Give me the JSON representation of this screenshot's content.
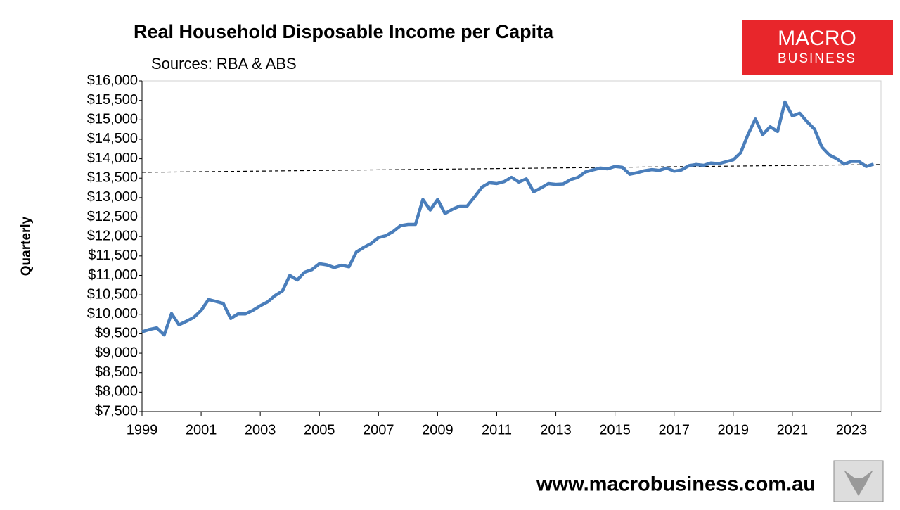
{
  "chart_data": {
    "type": "line",
    "title": "Real Household Disposable Income per Capita",
    "subtitle": "Sources: RBA & ABS",
    "y_label": "Quarterly",
    "x": [
      1999,
      1999.25,
      1999.5,
      1999.75,
      2000,
      2000.25,
      2000.5,
      2000.75,
      2001,
      2001.25,
      2001.5,
      2001.75,
      2002,
      2002.25,
      2002.5,
      2002.75,
      2003,
      2003.25,
      2003.5,
      2003.75,
      2004,
      2004.25,
      2004.5,
      2004.75,
      2005,
      2005.25,
      2005.5,
      2005.75,
      2006,
      2006.25,
      2006.5,
      2006.75,
      2007,
      2007.25,
      2007.5,
      2007.75,
      2008,
      2008.25,
      2008.5,
      2008.75,
      2009,
      2009.25,
      2009.5,
      2009.75,
      2010,
      2010.25,
      2010.5,
      2010.75,
      2011,
      2011.25,
      2011.5,
      2011.75,
      2012,
      2012.25,
      2012.5,
      2012.75,
      2013,
      2013.25,
      2013.5,
      2013.75,
      2014,
      2014.25,
      2014.5,
      2014.75,
      2015,
      2015.25,
      2015.5,
      2015.75,
      2016,
      2016.25,
      2016.5,
      2016.75,
      2017,
      2017.25,
      2017.5,
      2017.75,
      2018,
      2018.25,
      2018.5,
      2018.75,
      2019,
      2019.25,
      2019.5,
      2019.75,
      2020,
      2020.25,
      2020.5,
      2020.75,
      2021,
      2021.25,
      2021.5,
      2021.75,
      2022,
      2022.25,
      2022.5,
      2022.75,
      2023,
      2023.25,
      2023.5,
      2023.75
    ],
    "series": [
      {
        "color": "#4a7ebb",
        "values": [
          9550,
          9610,
          9650,
          9470,
          10020,
          9730,
          9820,
          9920,
          10100,
          10380,
          10330,
          10280,
          9890,
          10010,
          10010,
          10100,
          10220,
          10320,
          10480,
          10600,
          11000,
          10880,
          11080,
          11150,
          11300,
          11270,
          11200,
          11260,
          11220,
          11600,
          11720,
          11820,
          11970,
          12020,
          12130,
          12280,
          12310,
          12310,
          12950,
          12680,
          12950,
          12590,
          12700,
          12780,
          12780,
          13020,
          13270,
          13380,
          13360,
          13410,
          13520,
          13400,
          13480,
          13150,
          13250,
          13360,
          13340,
          13350,
          13460,
          13520,
          13660,
          13710,
          13760,
          13740,
          13800,
          13780,
          13600,
          13640,
          13690,
          13720,
          13700,
          13760,
          13680,
          13710,
          13820,
          13850,
          13830,
          13890,
          13870,
          13920,
          13970,
          14150,
          14620,
          15020,
          14620,
          14820,
          14700,
          15460,
          15100,
          15170,
          14950,
          14760,
          14300,
          14100,
          14000,
          13860,
          13930,
          13930,
          13800,
          13860
        ]
      }
    ],
    "reference_line": {
      "x": [
        1999,
        2024
      ],
      "values": [
        13650,
        13850
      ],
      "color": "#000000",
      "dashed": true
    },
    "xlim": [
      1999,
      2024
    ],
    "xticks": [
      1999,
      2001,
      2003,
      2005,
      2007,
      2009,
      2011,
      2013,
      2015,
      2017,
      2019,
      2021,
      2023
    ],
    "ylim": [
      7500,
      16000
    ],
    "yticks": [
      {
        "value": 7500,
        "label": "$7,500"
      },
      {
        "value": 8000,
        "label": "$8,000"
      },
      {
        "value": 8500,
        "label": "$8,500"
      },
      {
        "value": 9000,
        "label": "$9,000"
      },
      {
        "value": 9500,
        "label": "$9,500"
      },
      {
        "value": 10000,
        "label": "$10,000"
      },
      {
        "value": 10500,
        "label": "$10,500"
      },
      {
        "value": 11000,
        "label": "$11,000"
      },
      {
        "value": 11500,
        "label": "$11,500"
      },
      {
        "value": 12000,
        "label": "$12,000"
      },
      {
        "value": 12500,
        "label": "$12,500"
      },
      {
        "value": 13000,
        "label": "$13,000"
      },
      {
        "value": 13500,
        "label": "$13,500"
      },
      {
        "value": 14000,
        "label": "$14,000"
      },
      {
        "value": 14500,
        "label": "$14,500"
      },
      {
        "value": 15000,
        "label": "$15,000"
      },
      {
        "value": 15500,
        "label": "$15,500"
      },
      {
        "value": 16000,
        "label": "$16,000"
      }
    ],
    "grid": false
  },
  "logo": {
    "line1": "MACRO",
    "line2": "BUSINESS"
  },
  "footer": "www.macrobusiness.com.au"
}
